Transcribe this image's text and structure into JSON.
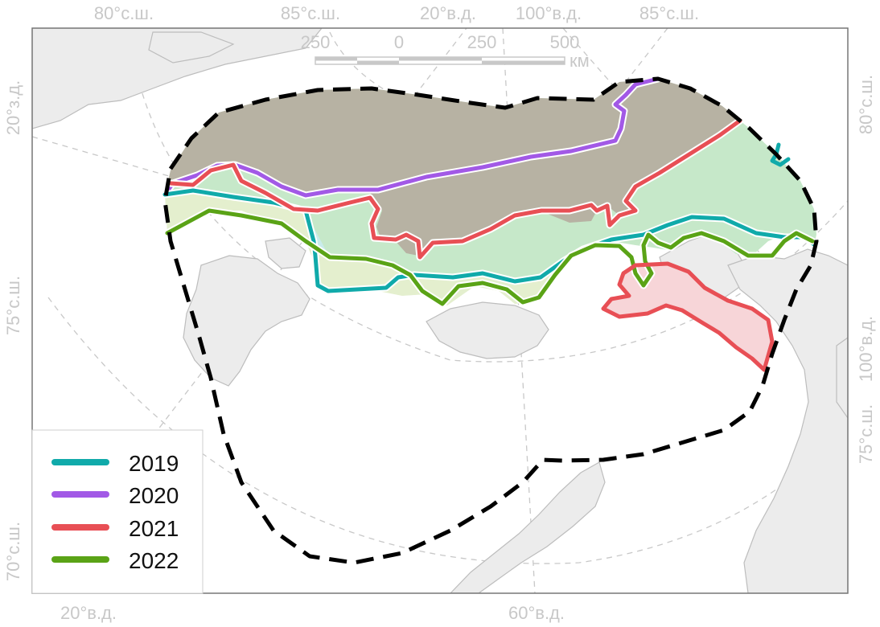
{
  "colors": {
    "y2019": "#10aaaa",
    "y2020": "#a259e6",
    "y2021": "#e84f55",
    "y2022": "#5aa316",
    "boundary": "#000000",
    "land": "#ececec",
    "land_edge": "#bdbdbd",
    "graticule": "#c8c8c8",
    "tint_north": "#b5ac9f"
  },
  "graticule_labels": {
    "top": [
      "80°с.ш.",
      "85°с.ш.",
      "20°в.д.",
      "100°в.д.",
      "85°с.ш."
    ],
    "left": [
      "20°з.д.",
      "75°с.ш.",
      "70°с.ш."
    ],
    "right": [
      "80°с.ш.",
      "100°в.д.",
      "75°с.ш."
    ],
    "bottom": [
      "20°в.д.",
      "60°в.д."
    ]
  },
  "scale_bar": {
    "ticks": [
      "250",
      "0",
      "250",
      "500"
    ],
    "unit": "км"
  },
  "legend": {
    "items": [
      {
        "label": "2019",
        "color_key": "y2019"
      },
      {
        "label": "2020",
        "color_key": "y2020"
      },
      {
        "label": "2021",
        "color_key": "y2021"
      },
      {
        "label": "2022",
        "color_key": "y2022"
      }
    ]
  }
}
